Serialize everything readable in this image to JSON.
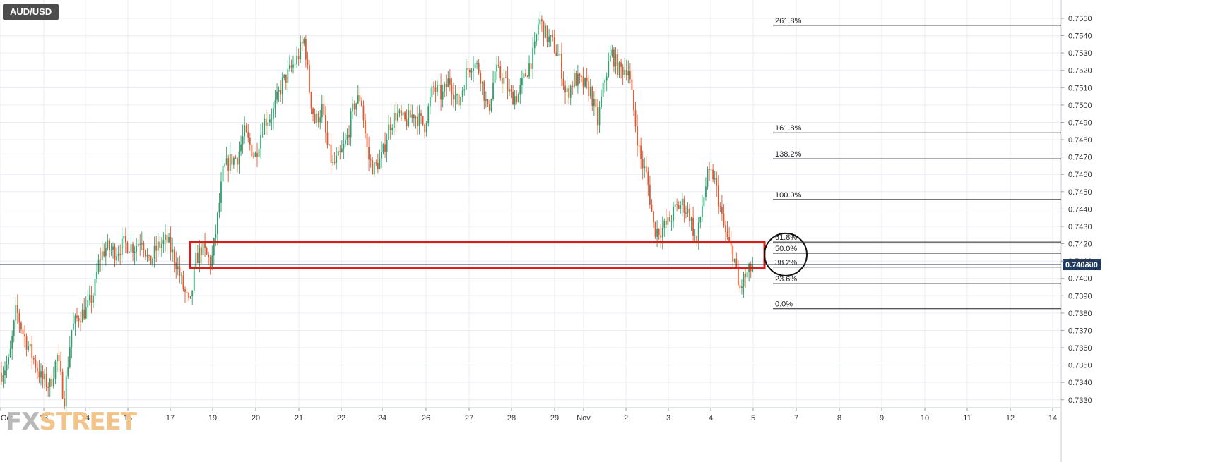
{
  "symbol": "AUD/USD",
  "watermark": {
    "part1": "FX",
    "part2": "STREET"
  },
  "price_badge": "0.740800",
  "colors": {
    "up": "#2e9e6a",
    "down": "#e4572e",
    "zone": "#e01a1a",
    "fib": "#222222",
    "grid": "#e9eef5"
  },
  "chart_data": {
    "type": "candlestick",
    "x_labels": [
      "Oct",
      "13",
      "14",
      "15",
      "17",
      "19",
      "20",
      "21",
      "22",
      "24",
      "26",
      "27",
      "28",
      "29",
      "Nov",
      "2",
      "3",
      "4",
      "5",
      "7",
      "8",
      "9",
      "10",
      "11",
      "12",
      "14"
    ],
    "y_ticks": [
      "0.7330",
      "0.7340",
      "0.7350",
      "0.7360",
      "0.7370",
      "0.7380",
      "0.7390",
      "0.7400",
      "0.7410",
      "0.7420",
      "0.7430",
      "0.7440",
      "0.7450",
      "0.7460",
      "0.7470",
      "0.7480",
      "0.7490",
      "0.7500",
      "0.7510",
      "0.7520",
      "0.7530",
      "0.7540",
      "0.7550"
    ],
    "ylim": [
      0.7325,
      0.756
    ],
    "current_price": 0.7408,
    "fibonacci": [
      {
        "label": "261.8%",
        "value": 0.7546
      },
      {
        "label": "161.8%",
        "value": 0.7484
      },
      {
        "label": "138.2%",
        "value": 0.7469
      },
      {
        "label": "100.0%",
        "value": 0.74455
      },
      {
        "label": "61.8%",
        "value": 0.7421
      },
      {
        "label": "50.0%",
        "value": 0.74145
      },
      {
        "label": "38.2%",
        "value": 0.74065
      },
      {
        "label": "23.6%",
        "value": 0.7397
      },
      {
        "label": "0.0%",
        "value": 0.73825
      }
    ],
    "zone": {
      "from_label": "17",
      "to_label": "5",
      "top": 0.7421,
      "bottom": 0.7406
    },
    "path": [
      [
        0,
        0.7345
      ],
      [
        12,
        0.7352
      ],
      [
        22,
        0.7382
      ],
      [
        32,
        0.7368
      ],
      [
        45,
        0.7355
      ],
      [
        58,
        0.7342
      ],
      [
        70,
        0.7338
      ],
      [
        80,
        0.7355
      ],
      [
        90,
        0.733
      ],
      [
        100,
        0.737
      ],
      [
        110,
        0.7378
      ],
      [
        122,
        0.7382
      ],
      [
        132,
        0.7392
      ],
      [
        140,
        0.7412
      ],
      [
        150,
        0.7418
      ],
      [
        162,
        0.7415
      ],
      [
        175,
        0.742
      ],
      [
        190,
        0.7418
      ],
      [
        200,
        0.7424
      ],
      [
        210,
        0.7408
      ],
      [
        222,
        0.7418
      ],
      [
        235,
        0.7422
      ],
      [
        248,
        0.741
      ],
      [
        258,
        0.7395
      ],
      [
        268,
        0.7383
      ],
      [
        276,
        0.741
      ],
      [
        285,
        0.7418
      ],
      [
        298,
        0.7408
      ],
      [
        305,
        0.7428
      ],
      [
        315,
        0.7462
      ],
      [
        325,
        0.7468
      ],
      [
        335,
        0.747
      ],
      [
        345,
        0.7484
      ],
      [
        360,
        0.747
      ],
      [
        372,
        0.749
      ],
      [
        385,
        0.7495
      ],
      [
        398,
        0.7512
      ],
      [
        410,
        0.752
      ],
      [
        420,
        0.7527
      ],
      [
        430,
        0.7538
      ],
      [
        438,
        0.7505
      ],
      [
        445,
        0.749
      ],
      [
        455,
        0.7498
      ],
      [
        462,
        0.7477
      ],
      [
        470,
        0.7465
      ],
      [
        480,
        0.747
      ],
      [
        490,
        0.748
      ],
      [
        500,
        0.75
      ],
      [
        510,
        0.7505
      ],
      [
        520,
        0.747
      ],
      [
        528,
        0.7463
      ],
      [
        540,
        0.747
      ],
      [
        550,
        0.7488
      ],
      [
        560,
        0.7495
      ],
      [
        572,
        0.749
      ],
      [
        585,
        0.7495
      ],
      [
        600,
        0.7488
      ],
      [
        612,
        0.751
      ],
      [
        625,
        0.7505
      ],
      [
        635,
        0.7515
      ],
      [
        648,
        0.75
      ],
      [
        660,
        0.752
      ],
      [
        668,
        0.7525
      ],
      [
        678,
        0.752
      ],
      [
        690,
        0.7495
      ],
      [
        700,
        0.752
      ],
      [
        712,
        0.7515
      ],
      [
        722,
        0.7505
      ],
      [
        732,
        0.7505
      ],
      [
        745,
        0.752
      ],
      [
        755,
        0.753
      ],
      [
        762,
        0.755
      ],
      [
        772,
        0.754
      ],
      [
        782,
        0.7535
      ],
      [
        792,
        0.7525
      ],
      [
        800,
        0.7505
      ],
      [
        812,
        0.7515
      ],
      [
        825,
        0.7512
      ],
      [
        835,
        0.7508
      ],
      [
        845,
        0.749
      ],
      [
        855,
        0.7515
      ],
      [
        865,
        0.753
      ],
      [
        875,
        0.752
      ],
      [
        888,
        0.7522
      ],
      [
        895,
        0.75
      ],
      [
        905,
        0.747
      ],
      [
        915,
        0.7458
      ],
      [
        925,
        0.7428
      ],
      [
        935,
        0.7428
      ],
      [
        945,
        0.7432
      ],
      [
        955,
        0.744
      ],
      [
        965,
        0.7443
      ],
      [
        975,
        0.7437
      ],
      [
        985,
        0.742
      ],
      [
        992,
        0.744
      ],
      [
        1000,
        0.7458
      ],
      [
        1008,
        0.746
      ],
      [
        1015,
        0.7448
      ],
      [
        1022,
        0.7432
      ],
      [
        1030,
        0.742
      ],
      [
        1038,
        0.7413
      ],
      [
        1045,
        0.7392
      ],
      [
        1052,
        0.74
      ],
      [
        1058,
        0.7403
      ],
      [
        1066,
        0.7408
      ]
    ]
  }
}
